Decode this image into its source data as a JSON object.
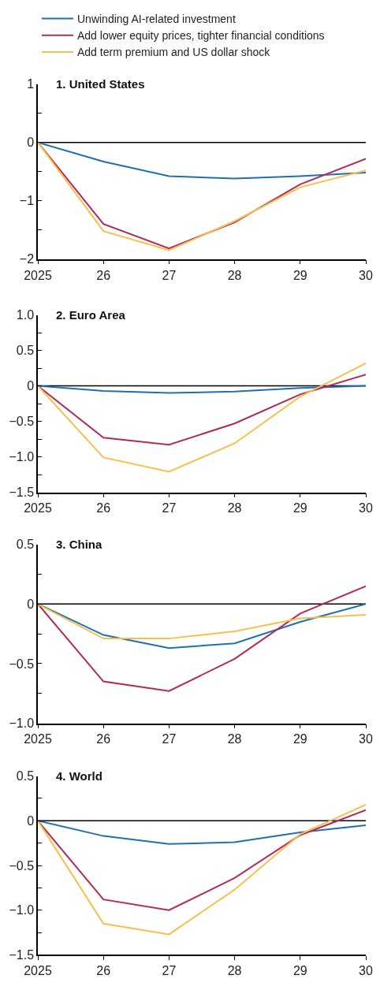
{
  "chart_data": [
    {
      "type": "line",
      "title": "1. United States",
      "legend": "top",
      "grid": false,
      "marker": "none",
      "line_style": "solid",
      "x": [
        2025,
        2026,
        2027,
        2028,
        2029,
        2030
      ],
      "xlim": [
        2025,
        2030
      ],
      "xticks": [
        2025,
        {
          "value": 2026,
          "label": "26"
        },
        {
          "value": 2027,
          "label": "27"
        },
        {
          "value": 2028,
          "label": "28"
        },
        {
          "value": 2029,
          "label": "29"
        },
        {
          "value": 2030,
          "label": "30"
        }
      ],
      "ylim": [
        -2,
        1
      ],
      "yticks": [
        -2,
        {
          "value": -1.5,
          "label": null
        },
        -1,
        {
          "value": -0.5,
          "label": null
        },
        0,
        {
          "value": 0.5,
          "label": null
        },
        1
      ],
      "ref_lines": [
        {
          "axis": "y",
          "value": 0,
          "color": "#000000"
        }
      ],
      "series": [
        {
          "name": "Unwinding AI-related investment",
          "color": "#1f6fb5",
          "values": [
            0,
            -0.33,
            -0.58,
            -0.62,
            -0.58,
            -0.52
          ]
        },
        {
          "name": "Add lower equity prices, tighter financial conditions",
          "color": "#b5295a",
          "values": [
            0,
            -1.4,
            -1.82,
            -1.37,
            -0.72,
            -0.28
          ]
        },
        {
          "name": "Add term premium and US dollar shock",
          "color": "#f7c04a",
          "values": [
            0,
            -1.52,
            -1.85,
            -1.35,
            -0.77,
            -0.48
          ]
        }
      ]
    },
    {
      "type": "line",
      "title": "2. Euro Area",
      "grid": false,
      "marker": "none",
      "line_style": "solid",
      "x": [
        2025,
        2026,
        2027,
        2028,
        2029,
        2030
      ],
      "xlim": [
        2025,
        2030
      ],
      "xticks": [
        2025,
        {
          "value": 2026,
          "label": "26"
        },
        {
          "value": 2027,
          "label": "27"
        },
        {
          "value": 2028,
          "label": "28"
        },
        {
          "value": 2029,
          "label": "29"
        },
        {
          "value": 2030,
          "label": "30"
        }
      ],
      "ylim": [
        -1.5,
        1.0
      ],
      "yticks": [
        {
          "value": -1.5,
          "label": "−1.5"
        },
        {
          "value": -1.25,
          "label": null
        },
        {
          "value": -1.0,
          "label": "−1.0"
        },
        {
          "value": -0.75,
          "label": null
        },
        {
          "value": -0.5,
          "label": "−0.5"
        },
        {
          "value": -0.25,
          "label": null
        },
        0,
        {
          "value": 0.25,
          "label": null
        },
        0.5,
        {
          "value": 0.75,
          "label": null
        },
        {
          "value": 1.0,
          "label": "1.0"
        }
      ],
      "ref_lines": [
        {
          "axis": "y",
          "value": 0,
          "color": "#000000"
        }
      ],
      "series": [
        {
          "color": "#1f6fb5",
          "values": [
            0,
            -0.07,
            -0.1,
            -0.08,
            -0.03,
            0
          ]
        },
        {
          "color": "#b5295a",
          "values": [
            0,
            -0.73,
            -0.83,
            -0.53,
            -0.12,
            0.16
          ]
        },
        {
          "color": "#f7c04a",
          "values": [
            0,
            -1.01,
            -1.21,
            -0.81,
            -0.15,
            0.32
          ]
        }
      ]
    },
    {
      "type": "line",
      "title": "3. China",
      "grid": false,
      "marker": "none",
      "line_style": "solid",
      "x": [
        2025,
        2026,
        2027,
        2028,
        2029,
        2030
      ],
      "xlim": [
        2025,
        2030
      ],
      "xticks": [
        2025,
        {
          "value": 2026,
          "label": "26"
        },
        {
          "value": 2027,
          "label": "27"
        },
        {
          "value": 2028,
          "label": "28"
        },
        {
          "value": 2029,
          "label": "29"
        },
        {
          "value": 2030,
          "label": "30"
        }
      ],
      "ylim": [
        -1.0,
        0.5
      ],
      "yticks": [
        {
          "value": -1.0,
          "label": "−1.0"
        },
        {
          "value": -0.75,
          "label": null
        },
        {
          "value": -0.5,
          "label": "−0.5"
        },
        {
          "value": -0.25,
          "label": null
        },
        0,
        {
          "value": 0.25,
          "label": null
        },
        0.5
      ],
      "ref_lines": [
        {
          "axis": "y",
          "value": 0,
          "color": "#000000"
        }
      ],
      "series": [
        {
          "color": "#1f6fb5",
          "values": [
            0,
            -0.26,
            -0.37,
            -0.33,
            -0.15,
            0
          ]
        },
        {
          "color": "#b5295a",
          "values": [
            0,
            -0.65,
            -0.73,
            -0.46,
            -0.08,
            0.15
          ]
        },
        {
          "color": "#f7c04a",
          "values": [
            0,
            -0.29,
            -0.29,
            -0.23,
            -0.12,
            -0.09
          ]
        }
      ]
    },
    {
      "type": "line",
      "title": "4. World",
      "grid": false,
      "marker": "none",
      "line_style": "solid",
      "x": [
        2025,
        2026,
        2027,
        2028,
        2029,
        2030
      ],
      "xlim": [
        2025,
        2030
      ],
      "xticks": [
        2025,
        {
          "value": 2026,
          "label": "26"
        },
        {
          "value": 2027,
          "label": "27"
        },
        {
          "value": 2028,
          "label": "28"
        },
        {
          "value": 2029,
          "label": "29"
        },
        {
          "value": 2030,
          "label": "30"
        }
      ],
      "ylim": [
        -1.5,
        0.5
      ],
      "yticks": [
        {
          "value": -1.5,
          "label": "−1.5"
        },
        {
          "value": -1.25,
          "label": null
        },
        {
          "value": -1.0,
          "label": "−1.0"
        },
        {
          "value": -0.75,
          "label": null
        },
        {
          "value": -0.5,
          "label": "−0.5"
        },
        {
          "value": -0.25,
          "label": null
        },
        0,
        {
          "value": 0.25,
          "label": null
        },
        0.5
      ],
      "ref_lines": [
        {
          "axis": "y",
          "value": 0,
          "color": "#000000"
        }
      ],
      "series": [
        {
          "color": "#1f6fb5",
          "values": [
            0,
            -0.17,
            -0.26,
            -0.24,
            -0.13,
            -0.05
          ]
        },
        {
          "color": "#b5295a",
          "values": [
            0,
            -0.88,
            -1.0,
            -0.64,
            -0.16,
            0.12
          ]
        },
        {
          "color": "#f7c04a",
          "values": [
            0,
            -1.15,
            -1.27,
            -0.77,
            -0.15,
            0.18
          ]
        }
      ]
    }
  ]
}
